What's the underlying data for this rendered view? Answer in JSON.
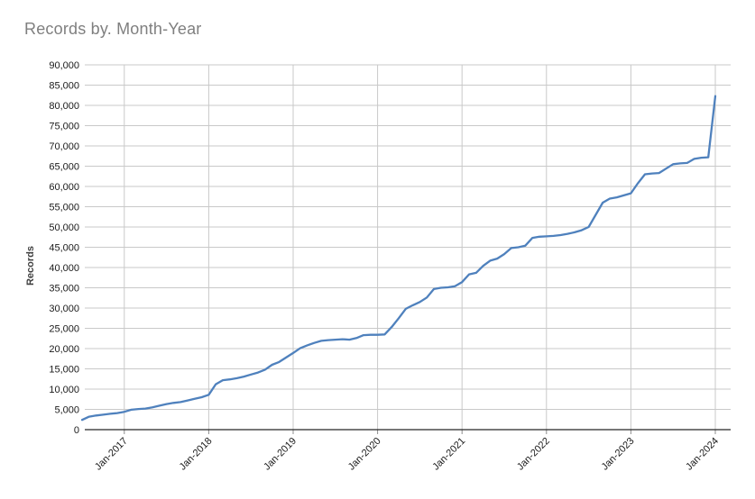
{
  "page": {
    "title": "Records by. Month-Year"
  },
  "chart_data": {
    "type": "line",
    "title": "Records by. Month-Year",
    "xlabel": "",
    "ylabel": "Records",
    "ylim": [
      0,
      90000
    ],
    "ytick_interval": 5000,
    "grid": true,
    "legend": false,
    "x_frequency": "monthly",
    "x_start": "Jul-2016",
    "x_end": "Jan-2024",
    "x_tick_labels": [
      "Jan-2017",
      "Jan-2018",
      "Jan-2019",
      "Jan-2020",
      "Jan-2021",
      "Jan-2022",
      "Jan-2023",
      "Jan-2024"
    ],
    "x_first_tick_index": 6,
    "x_tick_every": 12,
    "series": [
      {
        "name": "Records",
        "values": [
          2400,
          3200,
          3500,
          3700,
          3900,
          4100,
          4400,
          4900,
          5100,
          5200,
          5500,
          5900,
          6300,
          6600,
          6800,
          7200,
          7600,
          8000,
          8600,
          11200,
          12200,
          12400,
          12700,
          13100,
          13600,
          14100,
          14800,
          16000,
          16700,
          17800,
          18900,
          20100,
          20800,
          21400,
          21900,
          22100,
          22200,
          22300,
          22200,
          22600,
          23300,
          23400,
          23400,
          23500,
          25300,
          27500,
          29800,
          30700,
          31500,
          32600,
          34700,
          35000,
          35100,
          35400,
          36400,
          38300,
          38700,
          40400,
          41700,
          42200,
          43300,
          44800,
          45000,
          45400,
          47300,
          47600,
          47700,
          47800,
          48000,
          48300,
          48700,
          49200,
          50000,
          53000,
          56000,
          57000,
          57300,
          57800,
          58300,
          60800,
          63000,
          63200,
          63300,
          64400,
          65500,
          65700,
          65800,
          66800,
          67100,
          67200,
          82300
        ]
      }
    ],
    "colors": {
      "line": "#4f81bd",
      "grid": "#c9c9c9",
      "axis": "#262626",
      "tick_mark": "#8c8c8c",
      "title_text": "#7f7f7f",
      "tick_text": "#1a1a1a"
    }
  }
}
